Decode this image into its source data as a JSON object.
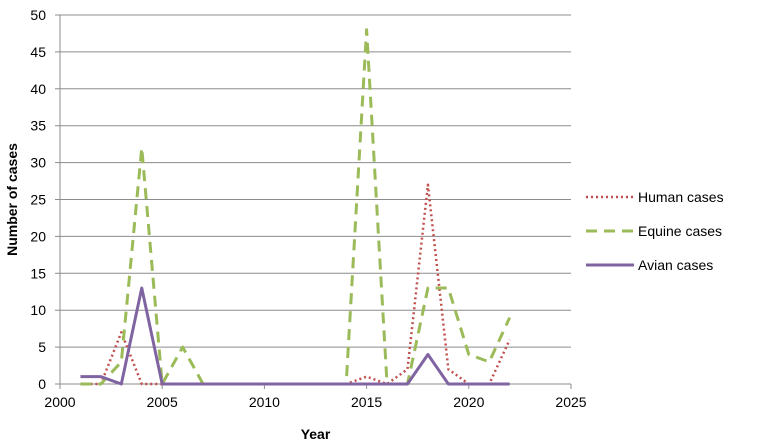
{
  "chart_data": {
    "type": "line",
    "title": "",
    "xlabel": "Year",
    "ylabel": "Number of cases",
    "xlim": [
      2000,
      2025
    ],
    "ylim": [
      0,
      50
    ],
    "xticks": [
      2000,
      2005,
      2010,
      2015,
      2020,
      2025
    ],
    "yticks": [
      0,
      5,
      10,
      15,
      20,
      25,
      30,
      35,
      40,
      45,
      50
    ],
    "grid": "horizontal",
    "legend_position": "right",
    "series": [
      {
        "name": "Human cases",
        "color": "#c0504d",
        "dash": "dotted",
        "x": [
          2001,
          2002,
          2003,
          2004,
          2005,
          2006,
          2007,
          2008,
          2009,
          2010,
          2011,
          2012,
          2013,
          2014,
          2015,
          2016,
          2017,
          2018,
          2019,
          2020,
          2021,
          2022
        ],
        "y": [
          0,
          0,
          7,
          0,
          0,
          0,
          0,
          0,
          0,
          0,
          0,
          0,
          0,
          0,
          1,
          0,
          2,
          27,
          2,
          0,
          0,
          6
        ]
      },
      {
        "name": "Equine cases",
        "color": "#9bbb59",
        "dash": "dashed",
        "x": [
          2001,
          2002,
          2003,
          2004,
          2005,
          2006,
          2007,
          2008,
          2009,
          2010,
          2011,
          2012,
          2013,
          2014,
          2015,
          2016,
          2017,
          2018,
          2019,
          2020,
          2021,
          2022
        ],
        "y": [
          0,
          0,
          3,
          32,
          0,
          5,
          0,
          0,
          0,
          0,
          0,
          0,
          0,
          0,
          48,
          0,
          0,
          13,
          13,
          4,
          3,
          9
        ]
      },
      {
        "name": "Avian cases",
        "color": "#8064a2",
        "dash": "solid",
        "x": [
          2001,
          2002,
          2003,
          2004,
          2005,
          2006,
          2007,
          2008,
          2009,
          2010,
          2011,
          2012,
          2013,
          2014,
          2015,
          2016,
          2017,
          2018,
          2019,
          2020,
          2021,
          2022
        ],
        "y": [
          1,
          1,
          0,
          13,
          0,
          0,
          0,
          0,
          0,
          0,
          0,
          0,
          0,
          0,
          0,
          0,
          0,
          4,
          0,
          0,
          0,
          0
        ]
      }
    ]
  }
}
